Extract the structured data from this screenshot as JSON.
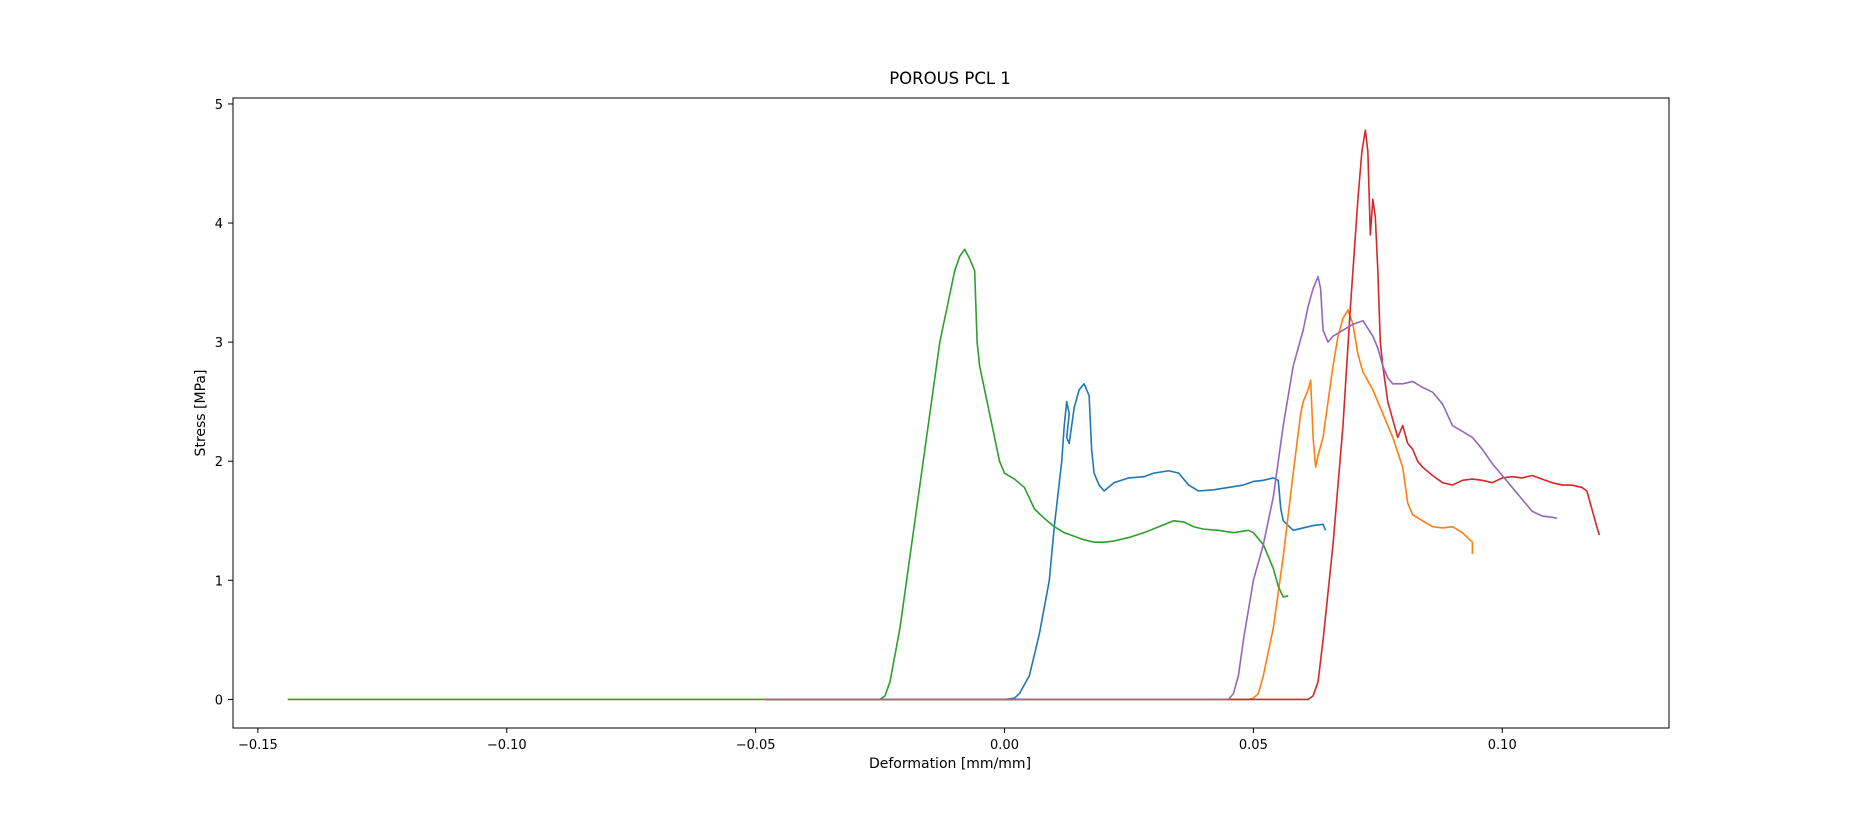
{
  "chart_data": {
    "type": "line",
    "title": "POROUS PCL 1",
    "xlabel": "Deformation [mm/mm]",
    "ylabel": "Stress [MPa]",
    "xlim": [
      -0.155,
      0.1335
    ],
    "ylim": [
      -0.24,
      5.05
    ],
    "xticks": [
      -0.15,
      -0.1,
      -0.05,
      0.0,
      0.05,
      0.1
    ],
    "xtick_labels": [
      "−0.15",
      "−0.10",
      "−0.05",
      "0.00",
      "0.05",
      "0.10"
    ],
    "yticks": [
      0,
      1,
      2,
      3,
      4,
      5
    ],
    "ytick_labels": [
      "0",
      "1",
      "2",
      "3",
      "4",
      "5"
    ],
    "grid": false,
    "legend": "none",
    "series": [
      {
        "color": "#1f77b4",
        "points": [
          [
            -0.048,
            0
          ],
          [
            0.0,
            0
          ],
          [
            0.002,
            0.01
          ],
          [
            0.003,
            0.05
          ],
          [
            0.005,
            0.2
          ],
          [
            0.007,
            0.55
          ],
          [
            0.009,
            1.0
          ],
          [
            0.01,
            1.45
          ],
          [
            0.0115,
            2.0
          ],
          [
            0.012,
            2.3
          ],
          [
            0.0125,
            2.5
          ],
          [
            0.013,
            2.4
          ],
          [
            0.0125,
            2.2
          ],
          [
            0.013,
            2.15
          ],
          [
            0.014,
            2.45
          ],
          [
            0.015,
            2.6
          ],
          [
            0.016,
            2.65
          ],
          [
            0.017,
            2.55
          ],
          [
            0.0175,
            2.1
          ],
          [
            0.018,
            1.9
          ],
          [
            0.019,
            1.8
          ],
          [
            0.02,
            1.75
          ],
          [
            0.022,
            1.82
          ],
          [
            0.025,
            1.86
          ],
          [
            0.028,
            1.87
          ],
          [
            0.03,
            1.9
          ],
          [
            0.033,
            1.92
          ],
          [
            0.035,
            1.9
          ],
          [
            0.037,
            1.8
          ],
          [
            0.039,
            1.75
          ],
          [
            0.042,
            1.76
          ],
          [
            0.045,
            1.78
          ],
          [
            0.048,
            1.8
          ],
          [
            0.05,
            1.83
          ],
          [
            0.052,
            1.84
          ],
          [
            0.054,
            1.86
          ],
          [
            0.055,
            1.84
          ],
          [
            0.0555,
            1.6
          ],
          [
            0.056,
            1.5
          ],
          [
            0.058,
            1.42
          ],
          [
            0.06,
            1.44
          ],
          [
            0.062,
            1.46
          ],
          [
            0.064,
            1.47
          ],
          [
            0.0645,
            1.42
          ]
        ]
      },
      {
        "color": "#ff7f0e",
        "points": [
          [
            -0.048,
            0
          ],
          [
            0.049,
            0
          ],
          [
            0.05,
            0.01
          ],
          [
            0.051,
            0.05
          ],
          [
            0.052,
            0.2
          ],
          [
            0.054,
            0.6
          ],
          [
            0.056,
            1.2
          ],
          [
            0.058,
            1.9
          ],
          [
            0.0595,
            2.4
          ],
          [
            0.06,
            2.5
          ],
          [
            0.061,
            2.6
          ],
          [
            0.0615,
            2.68
          ],
          [
            0.062,
            2.2
          ],
          [
            0.0625,
            1.95
          ],
          [
            0.063,
            2.05
          ],
          [
            0.064,
            2.2
          ],
          [
            0.065,
            2.5
          ],
          [
            0.066,
            2.8
          ],
          [
            0.067,
            3.05
          ],
          [
            0.068,
            3.2
          ],
          [
            0.069,
            3.27
          ],
          [
            0.07,
            3.15
          ],
          [
            0.071,
            2.9
          ],
          [
            0.072,
            2.75
          ],
          [
            0.074,
            2.6
          ],
          [
            0.076,
            2.4
          ],
          [
            0.078,
            2.2
          ],
          [
            0.08,
            1.95
          ],
          [
            0.081,
            1.65
          ],
          [
            0.082,
            1.55
          ],
          [
            0.084,
            1.5
          ],
          [
            0.086,
            1.45
          ],
          [
            0.088,
            1.44
          ],
          [
            0.09,
            1.45
          ],
          [
            0.092,
            1.4
          ],
          [
            0.094,
            1.32
          ],
          [
            0.094,
            1.22
          ]
        ]
      },
      {
        "color": "#2ca02c",
        "points": [
          [
            -0.144,
            0
          ],
          [
            -0.025,
            0
          ],
          [
            -0.024,
            0.03
          ],
          [
            -0.023,
            0.15
          ],
          [
            -0.021,
            0.6
          ],
          [
            -0.019,
            1.2
          ],
          [
            -0.017,
            1.8
          ],
          [
            -0.015,
            2.4
          ],
          [
            -0.013,
            3.0
          ],
          [
            -0.011,
            3.4
          ],
          [
            -0.01,
            3.6
          ],
          [
            -0.009,
            3.72
          ],
          [
            -0.008,
            3.78
          ],
          [
            -0.007,
            3.7
          ],
          [
            -0.006,
            3.6
          ],
          [
            -0.0055,
            3.0
          ],
          [
            -0.005,
            2.8
          ],
          [
            -0.004,
            2.6
          ],
          [
            -0.003,
            2.4
          ],
          [
            -0.002,
            2.2
          ],
          [
            -0.001,
            2.0
          ],
          [
            0.0,
            1.9
          ],
          [
            0.002,
            1.85
          ],
          [
            0.004,
            1.78
          ],
          [
            0.006,
            1.6
          ],
          [
            0.008,
            1.52
          ],
          [
            0.01,
            1.45
          ],
          [
            0.012,
            1.4
          ],
          [
            0.014,
            1.37
          ],
          [
            0.016,
            1.34
          ],
          [
            0.018,
            1.32
          ],
          [
            0.02,
            1.32
          ],
          [
            0.022,
            1.33
          ],
          [
            0.025,
            1.36
          ],
          [
            0.028,
            1.4
          ],
          [
            0.031,
            1.45
          ],
          [
            0.034,
            1.5
          ],
          [
            0.036,
            1.49
          ],
          [
            0.038,
            1.45
          ],
          [
            0.04,
            1.43
          ],
          [
            0.043,
            1.42
          ],
          [
            0.046,
            1.4
          ],
          [
            0.049,
            1.42
          ],
          [
            0.05,
            1.4
          ],
          [
            0.052,
            1.3
          ],
          [
            0.053,
            1.2
          ],
          [
            0.054,
            1.1
          ],
          [
            0.055,
            0.95
          ],
          [
            0.056,
            0.86
          ],
          [
            0.057,
            0.87
          ]
        ]
      },
      {
        "color": "#d62728",
        "points": [
          [
            -0.048,
            0
          ],
          [
            0.061,
            0
          ],
          [
            0.062,
            0.03
          ],
          [
            0.063,
            0.15
          ],
          [
            0.064,
            0.5
          ],
          [
            0.066,
            1.3
          ],
          [
            0.068,
            2.3
          ],
          [
            0.0695,
            3.3
          ],
          [
            0.071,
            4.2
          ],
          [
            0.0718,
            4.6
          ],
          [
            0.0725,
            4.78
          ],
          [
            0.073,
            4.6
          ],
          [
            0.0735,
            3.9
          ],
          [
            0.074,
            4.2
          ],
          [
            0.0745,
            4.05
          ],
          [
            0.075,
            3.6
          ],
          [
            0.0755,
            3.0
          ],
          [
            0.076,
            2.8
          ],
          [
            0.077,
            2.5
          ],
          [
            0.078,
            2.35
          ],
          [
            0.079,
            2.2
          ],
          [
            0.08,
            2.3
          ],
          [
            0.081,
            2.15
          ],
          [
            0.082,
            2.1
          ],
          [
            0.083,
            2.0
          ],
          [
            0.084,
            1.95
          ],
          [
            0.086,
            1.88
          ],
          [
            0.088,
            1.82
          ],
          [
            0.09,
            1.8
          ],
          [
            0.092,
            1.84
          ],
          [
            0.094,
            1.85
          ],
          [
            0.096,
            1.84
          ],
          [
            0.098,
            1.82
          ],
          [
            0.1,
            1.86
          ],
          [
            0.102,
            1.87
          ],
          [
            0.104,
            1.86
          ],
          [
            0.106,
            1.88
          ],
          [
            0.108,
            1.85
          ],
          [
            0.11,
            1.82
          ],
          [
            0.112,
            1.8
          ],
          [
            0.114,
            1.8
          ],
          [
            0.116,
            1.78
          ],
          [
            0.117,
            1.75
          ],
          [
            0.118,
            1.6
          ],
          [
            0.119,
            1.45
          ],
          [
            0.1195,
            1.38
          ]
        ]
      },
      {
        "color": "#9467bd",
        "points": [
          [
            -0.048,
            0
          ],
          [
            0.045,
            0
          ],
          [
            0.046,
            0.05
          ],
          [
            0.047,
            0.2
          ],
          [
            0.048,
            0.5
          ],
          [
            0.05,
            1.0
          ],
          [
            0.052,
            1.3
          ],
          [
            0.054,
            1.7
          ],
          [
            0.056,
            2.3
          ],
          [
            0.058,
            2.8
          ],
          [
            0.06,
            3.1
          ],
          [
            0.061,
            3.3
          ],
          [
            0.062,
            3.45
          ],
          [
            0.063,
            3.55
          ],
          [
            0.0635,
            3.45
          ],
          [
            0.064,
            3.1
          ],
          [
            0.065,
            3.0
          ],
          [
            0.066,
            3.05
          ],
          [
            0.068,
            3.1
          ],
          [
            0.07,
            3.15
          ],
          [
            0.072,
            3.18
          ],
          [
            0.074,
            3.05
          ],
          [
            0.075,
            2.95
          ],
          [
            0.076,
            2.8
          ],
          [
            0.077,
            2.7
          ],
          [
            0.078,
            2.65
          ],
          [
            0.08,
            2.65
          ],
          [
            0.082,
            2.67
          ],
          [
            0.084,
            2.62
          ],
          [
            0.086,
            2.58
          ],
          [
            0.088,
            2.48
          ],
          [
            0.09,
            2.3
          ],
          [
            0.092,
            2.25
          ],
          [
            0.094,
            2.2
          ],
          [
            0.096,
            2.1
          ],
          [
            0.098,
            1.98
          ],
          [
            0.1,
            1.88
          ],
          [
            0.102,
            1.78
          ],
          [
            0.104,
            1.68
          ],
          [
            0.106,
            1.58
          ],
          [
            0.108,
            1.54
          ],
          [
            0.11,
            1.53
          ],
          [
            0.111,
            1.52
          ]
        ]
      }
    ]
  }
}
